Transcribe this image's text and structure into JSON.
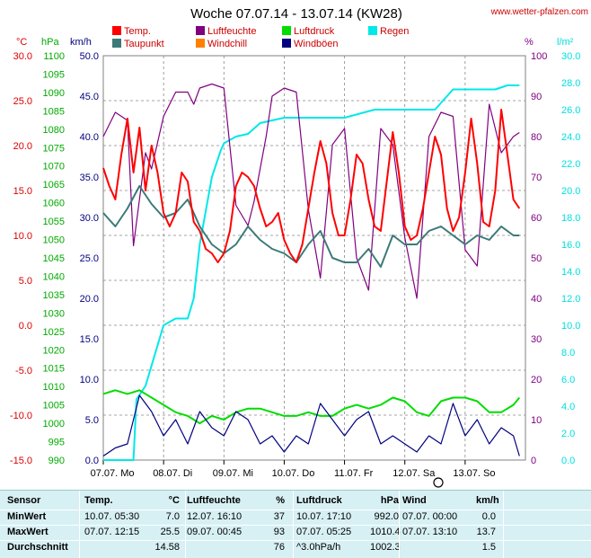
{
  "chart_data": {
    "type": "line",
    "title": "Woche 07.07.14 - 13.07.14 (KW28)",
    "source": "www.wetter-pfalzen.com",
    "x_range": [
      "07.07.",
      "14.07."
    ],
    "x_ticks": [
      "07.07. Mo",
      "08.07. Di",
      "09.07. Mi",
      "10.07. Do",
      "11.07. Fr",
      "12.07. Sa",
      "13.07. So"
    ],
    "axes": {
      "temp": {
        "label": "°C",
        "color": "#dd0000",
        "range": [
          -15,
          30
        ],
        "ticks": [
          "30.0",
          "25.0",
          "20.0",
          "15.0",
          "10.0",
          "5.0",
          "0.0",
          "-5.0",
          "-10.0",
          "-15.0"
        ]
      },
      "pressure": {
        "label": "hPa",
        "color": "#00aa00",
        "range": [
          990,
          1100
        ],
        "ticks": [
          "1100",
          "1095",
          "1090",
          "1085",
          "1080",
          "1075",
          "1070",
          "1065",
          "1060",
          "1055",
          "1050",
          "1045",
          "1040",
          "1035",
          "1030",
          "1025",
          "1020",
          "1015",
          "1010",
          "1005",
          "1000",
          "995",
          "990"
        ]
      },
      "wind": {
        "label": "km/h",
        "color": "#000080",
        "range": [
          0,
          50
        ],
        "ticks": [
          "50.0",
          "45.0",
          "40.0",
          "35.0",
          "30.0",
          "25.0",
          "20.0",
          "15.0",
          "10.0",
          "5.0",
          "0.0"
        ]
      },
      "humidity": {
        "label": "%",
        "color": "#800080",
        "range": [
          0,
          100
        ],
        "ticks": [
          "100",
          "90",
          "80",
          "70",
          "60",
          "50",
          "40",
          "30",
          "20",
          "10",
          "0"
        ]
      },
      "rain": {
        "label": "l/m²",
        "color": "#00e0e0",
        "range": [
          0,
          30
        ],
        "ticks": [
          "30.0",
          "28.0",
          "26.0",
          "24.0",
          "22.0",
          "20.0",
          "18.0",
          "16.0",
          "14.0",
          "12.0",
          "10.0",
          "8.0",
          "6.0",
          "4.0",
          "2.0",
          "0.0"
        ]
      }
    },
    "legend": [
      {
        "name": "Temp.",
        "color": "#ff0000"
      },
      {
        "name": "Luftfeuchte",
        "color": "#800080"
      },
      {
        "name": "Luftdruck",
        "color": "#00dd00"
      },
      {
        "name": "Regen",
        "color": "#00e8e8"
      },
      {
        "name": "Taupunkt",
        "color": "#3c7a78"
      },
      {
        "name": "Windchill",
        "color": "#ff8000"
      },
      {
        "name": "Windböen",
        "color": "#000080"
      }
    ],
    "series": [
      {
        "name": "Temp.",
        "axis": "temp",
        "color": "#ff0000",
        "x": [
          0,
          0.1,
          0.2,
          0.3,
          0.4,
          0.5,
          0.6,
          0.7,
          0.8,
          0.9,
          1.0,
          1.1,
          1.2,
          1.3,
          1.4,
          1.5,
          1.6,
          1.7,
          1.8,
          1.9,
          2.0,
          2.1,
          2.2,
          2.3,
          2.4,
          2.5,
          2.6,
          2.7,
          2.8,
          2.9,
          3.0,
          3.1,
          3.2,
          3.3,
          3.4,
          3.5,
          3.6,
          3.7,
          3.8,
          3.9,
          4.0,
          4.1,
          4.2,
          4.3,
          4.4,
          4.5,
          4.6,
          4.7,
          4.8,
          4.9,
          5.0,
          5.1,
          5.2,
          5.3,
          5.4,
          5.5,
          5.6,
          5.7,
          5.8,
          5.9,
          6.0,
          6.1,
          6.2,
          6.3,
          6.4,
          6.5,
          6.6,
          6.7,
          6.8,
          6.9
        ],
        "values": [
          17.5,
          15.5,
          14,
          19,
          23,
          17,
          22,
          15,
          20,
          17,
          12.5,
          11,
          12.5,
          17,
          16,
          11.5,
          10.5,
          8.5,
          8,
          7,
          8,
          10.5,
          15.5,
          17,
          16.5,
          15.5,
          13,
          11,
          11.5,
          12.5,
          9.5,
          8,
          7,
          9,
          13,
          17,
          20.5,
          18,
          12.5,
          10,
          10,
          14,
          19,
          18,
          14,
          11,
          10.5,
          16,
          21.5,
          17,
          11,
          9.5,
          10,
          13,
          17,
          21,
          19,
          13,
          10.5,
          12,
          17,
          23,
          18,
          11.5,
          11,
          15,
          24,
          19,
          14,
          13
        ]
      },
      {
        "name": "Taupunkt",
        "axis": "temp",
        "color": "#3c7a78",
        "x": [
          0,
          0.2,
          0.4,
          0.6,
          0.8,
          1.0,
          1.2,
          1.4,
          1.6,
          1.8,
          2.0,
          2.2,
          2.4,
          2.6,
          2.8,
          3.0,
          3.2,
          3.4,
          3.6,
          3.8,
          4.0,
          4.2,
          4.4,
          4.6,
          4.8,
          5.0,
          5.2,
          5.4,
          5.6,
          5.8,
          6.0,
          6.2,
          6.4,
          6.6,
          6.8,
          6.9
        ],
        "values": [
          12.5,
          11,
          13,
          15.5,
          13.5,
          12,
          12.5,
          14,
          11,
          9,
          8,
          9,
          11,
          9.5,
          8.5,
          8,
          7,
          9,
          10.5,
          7.5,
          7,
          7,
          8.5,
          6.5,
          10,
          9,
          9,
          10.5,
          11,
          10,
          9,
          10,
          9.5,
          11,
          10,
          10
        ]
      },
      {
        "name": "Luftfeuchte",
        "axis": "humidity",
        "color": "#800080",
        "x": [
          0,
          0.2,
          0.4,
          0.5,
          0.7,
          0.8,
          1.0,
          1.2,
          1.4,
          1.5,
          1.6,
          1.8,
          2.0,
          2.2,
          2.4,
          2.5,
          2.7,
          2.8,
          3.0,
          3.2,
          3.4,
          3.6,
          3.8,
          4.0,
          4.2,
          4.4,
          4.6,
          4.8,
          5.0,
          5.2,
          5.4,
          5.6,
          5.8,
          6.0,
          6.2,
          6.4,
          6.6,
          6.8,
          6.9
        ],
        "values": [
          80,
          86,
          84,
          53,
          76,
          72,
          85,
          91,
          91,
          88,
          92,
          93,
          92,
          63,
          58,
          64,
          80,
          90,
          92,
          91,
          62,
          45,
          78,
          82,
          50,
          42,
          82,
          78,
          55,
          40,
          80,
          86,
          85,
          52,
          48,
          88,
          76,
          80,
          81
        ]
      },
      {
        "name": "Regen",
        "axis": "rain",
        "color": "#00e8e8",
        "x": [
          0,
          0.5,
          0.55,
          0.7,
          0.8,
          1.0,
          1.2,
          1.4,
          1.5,
          1.6,
          1.8,
          1.95,
          2.0,
          2.2,
          2.4,
          2.6,
          2.8,
          3.0,
          3.5,
          4.0,
          4.5,
          5.0,
          5.5,
          5.8,
          6.0,
          6.5,
          6.7,
          6.9
        ],
        "values": [
          0,
          0,
          4.5,
          5.5,
          7,
          10,
          10.5,
          10.5,
          12,
          16,
          21,
          23,
          23.5,
          24,
          24.2,
          25,
          25.2,
          25.4,
          25.4,
          25.4,
          26,
          26,
          26,
          27.5,
          27.5,
          27.5,
          27.8,
          27.8
        ]
      },
      {
        "name": "Luftdruck",
        "axis": "pressure",
        "color": "#00dd00",
        "x": [
          0,
          0.2,
          0.4,
          0.6,
          0.8,
          1.0,
          1.2,
          1.4,
          1.6,
          1.8,
          2.0,
          2.2,
          2.4,
          2.6,
          2.8,
          3.0,
          3.2,
          3.4,
          3.6,
          3.8,
          4.0,
          4.2,
          4.4,
          4.6,
          4.8,
          5.0,
          5.2,
          5.4,
          5.6,
          5.8,
          6.0,
          6.2,
          6.4,
          6.6,
          6.8,
          6.9
        ],
        "values": [
          1008,
          1009,
          1008,
          1009,
          1007,
          1005,
          1003,
          1002,
          1000,
          1002,
          1001,
          1003,
          1004,
          1004,
          1003,
          1002,
          1002,
          1003,
          1002,
          1002,
          1004,
          1005,
          1004,
          1005,
          1007,
          1006,
          1003,
          1002,
          1006,
          1007,
          1007,
          1006,
          1003,
          1003,
          1005,
          1007
        ]
      },
      {
        "name": "Windböen",
        "axis": "wind",
        "color": "#000080",
        "x": [
          0,
          0.2,
          0.4,
          0.6,
          0.8,
          1.0,
          1.2,
          1.4,
          1.6,
          1.8,
          2.0,
          2.2,
          2.4,
          2.6,
          2.8,
          3.0,
          3.2,
          3.4,
          3.6,
          3.8,
          4.0,
          4.2,
          4.4,
          4.6,
          4.8,
          5.0,
          5.2,
          5.4,
          5.6,
          5.8,
          6.0,
          6.2,
          6.4,
          6.6,
          6.8,
          6.9
        ],
        "values": [
          0.5,
          1.5,
          2,
          8,
          6,
          3,
          5,
          2,
          6,
          4,
          3,
          6,
          5,
          2,
          3,
          1,
          3,
          2,
          7,
          5,
          3,
          5,
          6,
          2,
          3,
          2,
          1,
          3,
          2,
          7,
          3,
          5,
          2,
          4,
          3,
          0.5
        ]
      }
    ]
  },
  "table": {
    "headers": [
      "Sensor",
      "Temp.",
      "°C",
      "Luftfeuchte",
      "%",
      "Luftdruck",
      "hPa",
      "Wind",
      "km/h"
    ],
    "rows": [
      [
        "MinWert",
        "10.07.  05:30",
        "7.0",
        "12.07.  16:10",
        "37",
        "10.07.  17:10",
        "992.0",
        "07.07.  00:00",
        "0.0"
      ],
      [
        "MaxWert",
        "07.07.  12:15",
        "25.5",
        "09.07.  00:45",
        "93",
        "07.07.  05:25",
        "1010.4",
        "07.07.  13:10",
        "13.7"
      ],
      [
        "Durchschnitt",
        "",
        "14.58",
        "",
        "76",
        "^3.0hPa/h",
        "1002.3",
        "",
        "1.5"
      ]
    ]
  }
}
